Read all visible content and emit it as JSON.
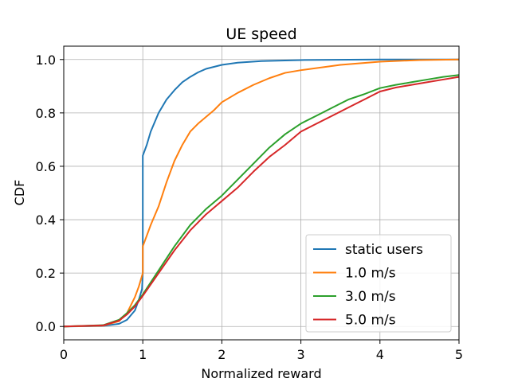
{
  "chart_data": {
    "type": "line",
    "title": "UE speed",
    "xlabel": "Normalized reward",
    "ylabel": "CDF",
    "xlim": [
      0,
      5
    ],
    "ylim": [
      -0.05,
      1.05
    ],
    "xticks": [
      0,
      1,
      2,
      3,
      4,
      5
    ],
    "xtick_labels": [
      "0",
      "1",
      "2",
      "3",
      "4",
      "5"
    ],
    "yticks": [
      0.0,
      0.2,
      0.4,
      0.6,
      0.8,
      1.0
    ],
    "ytick_labels": [
      "0.0",
      "0.2",
      "0.4",
      "0.6",
      "0.8",
      "1.0"
    ],
    "grid": true,
    "legend_position": "lower-right",
    "series": [
      {
        "name": "static users",
        "color": "#1f77b4",
        "points": [
          [
            0,
            0.0
          ],
          [
            0.5,
            0.002
          ],
          [
            0.7,
            0.01
          ],
          [
            0.8,
            0.025
          ],
          [
            0.9,
            0.06
          ],
          [
            0.95,
            0.1
          ],
          [
            0.99,
            0.14
          ],
          [
            1.0,
            0.2
          ],
          [
            1.0,
            0.64
          ],
          [
            1.05,
            0.68
          ],
          [
            1.1,
            0.73
          ],
          [
            1.2,
            0.8
          ],
          [
            1.3,
            0.85
          ],
          [
            1.4,
            0.885
          ],
          [
            1.5,
            0.915
          ],
          [
            1.6,
            0.935
          ],
          [
            1.7,
            0.952
          ],
          [
            1.8,
            0.965
          ],
          [
            2.0,
            0.98
          ],
          [
            2.2,
            0.988
          ],
          [
            2.5,
            0.994
          ],
          [
            3.0,
            0.998
          ],
          [
            4.0,
            1.0
          ],
          [
            5.0,
            1.0
          ]
        ]
      },
      {
        "name": "1.0 m/s",
        "color": "#ff7f0e",
        "points": [
          [
            0,
            0.0
          ],
          [
            0.5,
            0.003
          ],
          [
            0.7,
            0.02
          ],
          [
            0.8,
            0.05
          ],
          [
            0.9,
            0.11
          ],
          [
            0.95,
            0.15
          ],
          [
            1.0,
            0.2
          ],
          [
            1.0,
            0.3
          ],
          [
            1.05,
            0.34
          ],
          [
            1.1,
            0.38
          ],
          [
            1.2,
            0.45
          ],
          [
            1.3,
            0.54
          ],
          [
            1.4,
            0.62
          ],
          [
            1.5,
            0.68
          ],
          [
            1.6,
            0.73
          ],
          [
            1.7,
            0.76
          ],
          [
            1.8,
            0.785
          ],
          [
            1.9,
            0.81
          ],
          [
            2.0,
            0.84
          ],
          [
            2.2,
            0.875
          ],
          [
            2.4,
            0.905
          ],
          [
            2.6,
            0.93
          ],
          [
            2.8,
            0.95
          ],
          [
            3.0,
            0.96
          ],
          [
            3.5,
            0.98
          ],
          [
            4.0,
            0.992
          ],
          [
            4.5,
            0.998
          ],
          [
            5.0,
            1.0
          ]
        ]
      },
      {
        "name": "3.0 m/s",
        "color": "#2ca02c",
        "points": [
          [
            0,
            0.0
          ],
          [
            0.5,
            0.005
          ],
          [
            0.7,
            0.025
          ],
          [
            0.8,
            0.05
          ],
          [
            0.9,
            0.08
          ],
          [
            1.0,
            0.12
          ],
          [
            1.2,
            0.21
          ],
          [
            1.4,
            0.3
          ],
          [
            1.6,
            0.38
          ],
          [
            1.8,
            0.44
          ],
          [
            2.0,
            0.49
          ],
          [
            2.2,
            0.55
          ],
          [
            2.4,
            0.61
          ],
          [
            2.6,
            0.67
          ],
          [
            2.8,
            0.72
          ],
          [
            3.0,
            0.76
          ],
          [
            3.2,
            0.79
          ],
          [
            3.4,
            0.82
          ],
          [
            3.6,
            0.85
          ],
          [
            3.8,
            0.87
          ],
          [
            4.0,
            0.893
          ],
          [
            4.2,
            0.905
          ],
          [
            4.4,
            0.915
          ],
          [
            4.6,
            0.925
          ],
          [
            4.8,
            0.935
          ],
          [
            5.0,
            0.942
          ]
        ]
      },
      {
        "name": "5.0 m/s",
        "color": "#d62728",
        "points": [
          [
            0,
            0.0
          ],
          [
            0.5,
            0.004
          ],
          [
            0.7,
            0.022
          ],
          [
            0.8,
            0.045
          ],
          [
            0.9,
            0.075
          ],
          [
            1.0,
            0.115
          ],
          [
            1.2,
            0.2
          ],
          [
            1.4,
            0.285
          ],
          [
            1.6,
            0.36
          ],
          [
            1.8,
            0.42
          ],
          [
            2.0,
            0.47
          ],
          [
            2.2,
            0.52
          ],
          [
            2.4,
            0.58
          ],
          [
            2.6,
            0.635
          ],
          [
            2.8,
            0.68
          ],
          [
            3.0,
            0.73
          ],
          [
            3.2,
            0.76
          ],
          [
            3.4,
            0.79
          ],
          [
            3.6,
            0.82
          ],
          [
            3.8,
            0.85
          ],
          [
            4.0,
            0.88
          ],
          [
            4.2,
            0.895
          ],
          [
            4.4,
            0.905
          ],
          [
            4.6,
            0.915
          ],
          [
            4.8,
            0.925
          ],
          [
            5.0,
            0.935
          ]
        ]
      }
    ]
  }
}
